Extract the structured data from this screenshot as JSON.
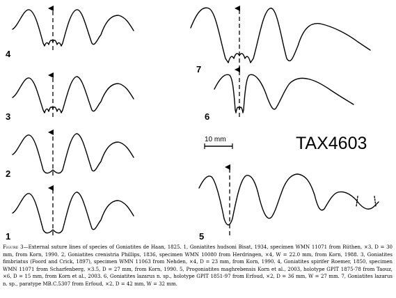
{
  "figure": {
    "specimen_labels": [
      "1",
      "2",
      "3",
      "4",
      "5",
      "6",
      "7"
    ],
    "scale_bar": {
      "label": "10  mm"
    },
    "watermark": "TAX4603",
    "caption_lead": "Figure 3",
    "caption_body": "—External suture lines of species of Goniatites de Haan, 1825. 1, Goniatites hudsoni Bisat, 1934, specimen WMN 11071 from Rüthen, ×3, D = 30 mm, from Korn, 1990. 2, Goniatites crenistria Phillips, 1836, specimen WMN 10080 from Herdringen, ×4, W = 22.0 mm, from Korn, 1988. 3, Goniatites fimbriatus (Foord and Crick, 1897), specimen WMN 11063 from Nehden, ×4, D = 23 mm, from Korn, 1990. 4, Goniatites spirifer Roemer, 1850, specimen WMN 11071 from Scharfenberg, ×3.5, D = 27 mm, from Korn, 1990. 5, Progoniatites maghrebensis Korn et al., 2003, holotype GPIT 1875-78 from Taouz, ×6, D = 15 mm, from Korn et al., 2003. 6, Goniatites lazarus n. sp., holotype GPIT 1851-97 from Erfoud, ×2, D = 36 mm, W = 27 mm. 7, Goniatites lazarus n. sp., paratype MB.C.5307 from Erfoud, ×2, D = 42 mm, W = 32 mm."
  }
}
